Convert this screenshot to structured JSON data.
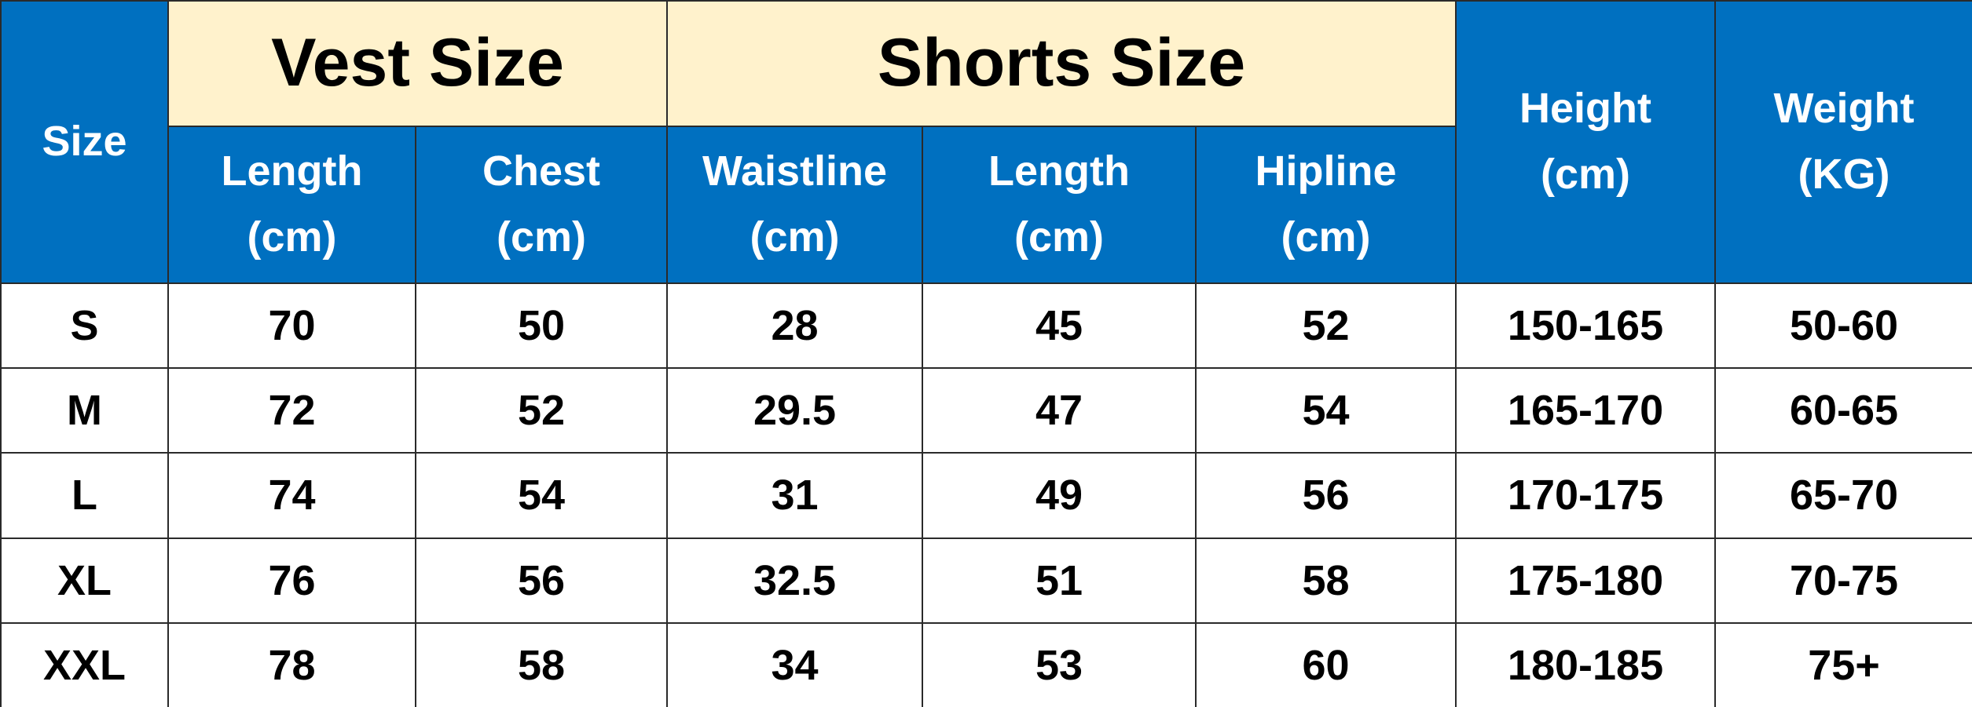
{
  "table": {
    "header": {
      "size": "Size",
      "vest": "Vest Size",
      "shorts": "Shorts Size",
      "height": [
        "Height",
        "(cm)"
      ],
      "weight": [
        "Weight",
        "(KG)"
      ],
      "sub": [
        [
          "Length",
          "(cm)"
        ],
        [
          "Chest",
          "(cm)"
        ],
        [
          "Waistline",
          "(cm)"
        ],
        [
          "Length",
          "(cm)"
        ],
        [
          "Hipline",
          "(cm)"
        ]
      ]
    },
    "rows": [
      [
        "S",
        "70",
        "50",
        "28",
        "45",
        "52",
        "150-165",
        "50-60"
      ],
      [
        "M",
        "72",
        "52",
        "29.5",
        "47",
        "54",
        "165-170",
        "60-65"
      ],
      [
        "L",
        "74",
        "54",
        "31",
        "49",
        "56",
        "170-175",
        "65-70"
      ],
      [
        "XL",
        "76",
        "56",
        "32.5",
        "51",
        "58",
        "175-180",
        "70-75"
      ],
      [
        "XXL",
        "78",
        "58",
        "34",
        "53",
        "60",
        "180-185",
        "75+"
      ]
    ]
  }
}
